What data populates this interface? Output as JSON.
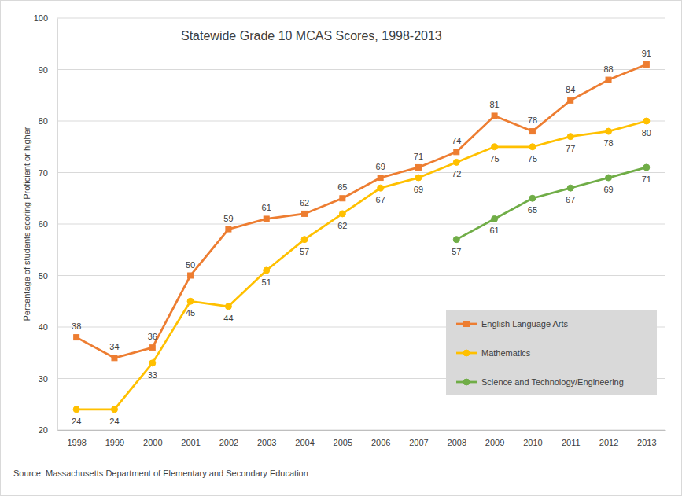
{
  "chart_data": {
    "type": "line",
    "title": "Statewide Grade 10 MCAS Scores, 1998-2013",
    "y_label": "Percentage of students scoring Proficient or higher",
    "source": "Source: Massachusetts Department of Elementary and Secondary Education",
    "categories": [
      "1998",
      "1999",
      "2000",
      "2001",
      "2002",
      "2003",
      "2004",
      "2005",
      "2006",
      "2007",
      "2008",
      "2009",
      "2010",
      "2011",
      "2012",
      "2013"
    ],
    "series": [
      {
        "name": "English Language Arts",
        "color": "#ed7d31",
        "marker": "square",
        "values": [
          38,
          34,
          36,
          50,
          59,
          61,
          62,
          65,
          69,
          71,
          74,
          81,
          78,
          84,
          88,
          91
        ]
      },
      {
        "name": "Mathematics",
        "color": "#ffc000",
        "marker": "circle",
        "values": [
          24,
          24,
          33,
          45,
          44,
          51,
          57,
          62,
          67,
          69,
          72,
          75,
          75,
          77,
          78,
          80
        ]
      },
      {
        "name": "Science and Technology/Engineering",
        "color": "#70ad47",
        "marker": "circle",
        "values": [
          null,
          null,
          null,
          null,
          null,
          null,
          null,
          null,
          null,
          null,
          57,
          61,
          65,
          67,
          69,
          71
        ]
      }
    ],
    "ylim": [
      20,
      100
    ],
    "yticks": [
      20,
      30,
      40,
      50,
      60,
      70,
      80,
      90,
      100
    ],
    "grid": true,
    "data_labels": true,
    "legend": "lower-right"
  }
}
